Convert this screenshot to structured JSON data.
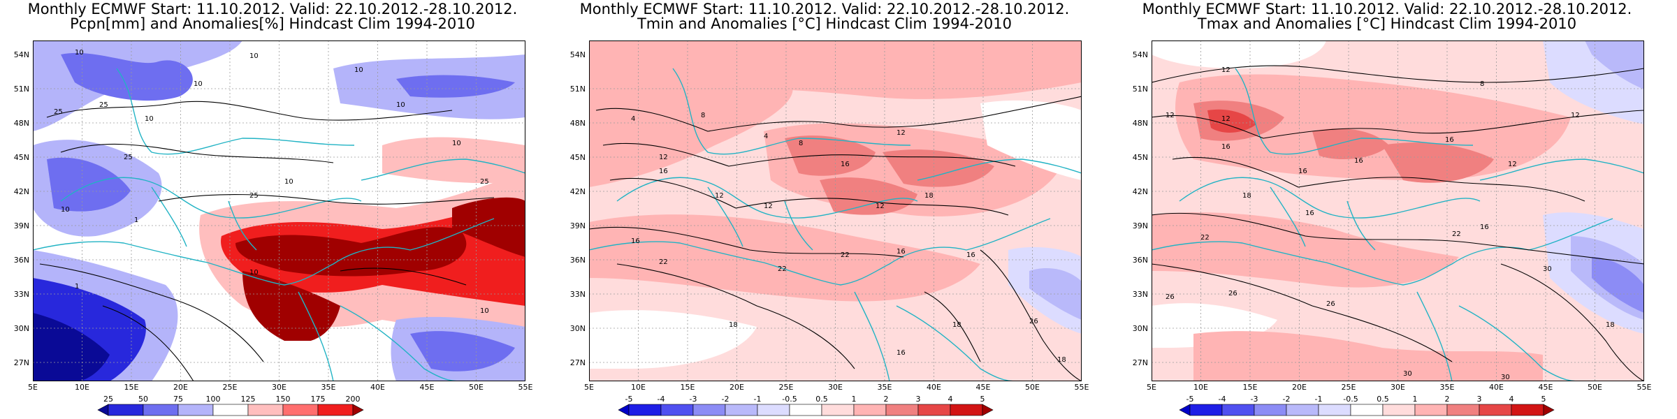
{
  "panels": [
    {
      "id": "pcpn",
      "title_line1": "Monthly ECMWF Start: 11.10.2012. Valid: 22.10.2012.-28.10.2012.",
      "title_line2": "Pcpn[mm] and Anomalies[%] Hindcast Clim 1994-2010",
      "x_ticks": [
        "5E",
        "10E",
        "15E",
        "20E",
        "25E",
        "30E",
        "35E",
        "40E",
        "45E",
        "50E",
        "55E"
      ],
      "y_ticks": [
        "27N",
        "30N",
        "33N",
        "36N",
        "39N",
        "42N",
        "45N",
        "48N",
        "51N",
        "54N"
      ],
      "colorbar": {
        "labels": [
          "25",
          "50",
          "75",
          "100",
          "125",
          "150",
          "175",
          "200"
        ],
        "colors": [
          "#0a0a96",
          "#2828dc",
          "#6e6ef0",
          "#b4b4fa",
          "#ffffff",
          "#ffbebe",
          "#ff6e6e",
          "#f01e1e",
          "#a00000"
        ]
      },
      "contour_labels": [
        "10",
        "10",
        "10",
        "10",
        "25",
        "25",
        "10",
        "10",
        "25",
        "25",
        "10",
        "10",
        "10",
        "1",
        "25",
        "10",
        "1",
        "10"
      ]
    },
    {
      "id": "tmin",
      "title_line1": "Monthly ECMWF Start: 11.10.2012. Valid: 22.10.2012.-28.10.2012.",
      "title_line2": "Tmin and Anomalies [°C] Hindcast Clim 1994-2010",
      "x_ticks": [
        "5E",
        "10E",
        "15E",
        "20E",
        "25E",
        "30E",
        "35E",
        "40E",
        "45E",
        "50E",
        "55E"
      ],
      "y_ticks": [
        "27N",
        "30N",
        "33N",
        "36N",
        "39N",
        "42N",
        "45N",
        "48N",
        "51N",
        "54N"
      ],
      "colorbar": {
        "labels": [
          "-5",
          "-4",
          "-3",
          "-2",
          "-1",
          "-0.5",
          "0.5",
          "1",
          "2",
          "3",
          "4",
          "5"
        ],
        "colors": [
          "#0000c8",
          "#1e1ee6",
          "#5050f0",
          "#8c8cf5",
          "#b9b9fa",
          "#dcdcff",
          "#ffffff",
          "#ffdcdc",
          "#ffb4b4",
          "#f08080",
          "#e64646",
          "#d21414",
          "#a00000"
        ]
      },
      "contour_labels": [
        "4",
        "8",
        "4",
        "8",
        "12",
        "12",
        "16",
        "16",
        "12",
        "12",
        "18",
        "12",
        "16",
        "22",
        "22",
        "16",
        "22",
        "18",
        "16",
        "18",
        "26",
        "16",
        "18"
      ]
    },
    {
      "id": "tmax",
      "title_line1": "Monthly ECMWF Start: 11.10.2012. Valid: 22.10.2012.-28.10.2012.",
      "title_line2": "Tmax and Anomalies [°C] Hindcast Clim 1994-2010",
      "x_ticks": [
        "5E",
        "10E",
        "15E",
        "20E",
        "25E",
        "30E",
        "35E",
        "40E",
        "45E",
        "50E",
        "55E"
      ],
      "y_ticks": [
        "27N",
        "30N",
        "33N",
        "36N",
        "39N",
        "42N",
        "45N",
        "48N",
        "51N",
        "54N"
      ],
      "colorbar": {
        "labels": [
          "-5",
          "-4",
          "-3",
          "-2",
          "-1",
          "-0.5",
          "0.5",
          "1",
          "2",
          "3",
          "4",
          "5"
        ],
        "colors": [
          "#0000c8",
          "#1e1ee6",
          "#5050f0",
          "#8c8cf5",
          "#b9b9fa",
          "#dcdcff",
          "#ffffff",
          "#ffdcdc",
          "#ffb4b4",
          "#f08080",
          "#e64646",
          "#d21414",
          "#a00000"
        ]
      },
      "contour_labels": [
        "12",
        "8",
        "12",
        "12",
        "12",
        "16",
        "16",
        "16",
        "16",
        "12",
        "16",
        "18",
        "22",
        "16",
        "22",
        "26",
        "26",
        "30",
        "26",
        "30",
        "18",
        "30"
      ]
    }
  ]
}
